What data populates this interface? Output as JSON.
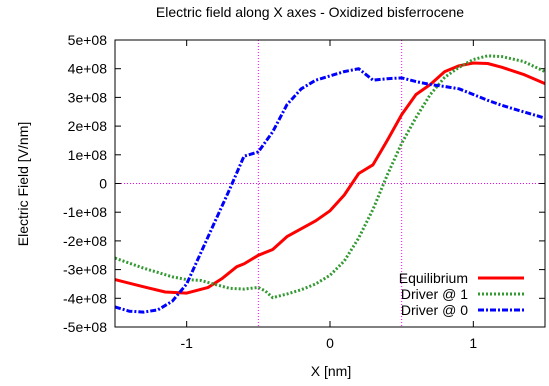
{
  "chart_data": {
    "type": "line",
    "title": "Electric field along X axes - Oxidized bisferrocene",
    "xlabel": "X [nm]",
    "ylabel": "Electric Field [V/nm]",
    "xlim": [
      -1.5,
      1.5
    ],
    "ylim": [
      -500000000,
      500000000
    ],
    "x_ticks": [
      -1,
      0,
      1
    ],
    "x_tick_labels": [
      "-1",
      "0",
      "1"
    ],
    "y_ticks": [
      -500000000,
      -400000000,
      -300000000,
      -200000000,
      -100000000,
      0,
      100000000,
      200000000,
      300000000,
      400000000,
      500000000
    ],
    "y_tick_labels": [
      "-5e+08",
      "-4e+08",
      "-3e+08",
      "-2e+08",
      "-1e+08",
      "0",
      "1e+08",
      "2e+08",
      "3e+08",
      "4e+08",
      "5e+08"
    ],
    "grid": false,
    "legend_position": "bottom-right",
    "reference_lines": {
      "vertical_x": [
        -0.5,
        0.5
      ],
      "horizontal_y": [
        0
      ],
      "color": "#ff00ff",
      "style": "dotted"
    },
    "series": [
      {
        "name": "Equilibrium",
        "color": "#ff0000",
        "style": "solid",
        "x": [
          -1.5,
          -1.3,
          -1.15,
          -1.0,
          -0.85,
          -0.75,
          -0.65,
          -0.6,
          -0.5,
          -0.4,
          -0.3,
          -0.1,
          0.0,
          0.1,
          0.2,
          0.3,
          0.4,
          0.5,
          0.6,
          0.7,
          0.8,
          0.9,
          1.0,
          1.1,
          1.2,
          1.35,
          1.5
        ],
        "y": [
          -335000000,
          -360000000,
          -378000000,
          -382000000,
          -362000000,
          -330000000,
          -290000000,
          -280000000,
          -250000000,
          -230000000,
          -185000000,
          -130000000,
          -95000000,
          -40000000,
          35000000,
          65000000,
          150000000,
          240000000,
          310000000,
          345000000,
          390000000,
          410000000,
          420000000,
          418000000,
          405000000,
          380000000,
          348000000
        ]
      },
      {
        "name": "Driver @ 1",
        "color": "#339933",
        "style": "dotted",
        "x": [
          -1.5,
          -1.3,
          -1.1,
          -1.0,
          -0.9,
          -0.8,
          -0.7,
          -0.6,
          -0.5,
          -0.45,
          -0.4,
          -0.3,
          -0.2,
          -0.1,
          0.0,
          0.1,
          0.2,
          0.3,
          0.4,
          0.5,
          0.6,
          0.7,
          0.8,
          0.9,
          1.0,
          1.1,
          1.2,
          1.35,
          1.5
        ],
        "y": [
          -260000000,
          -295000000,
          -325000000,
          -335000000,
          -338000000,
          -352000000,
          -365000000,
          -368000000,
          -362000000,
          -375000000,
          -398000000,
          -385000000,
          -370000000,
          -350000000,
          -320000000,
          -270000000,
          -190000000,
          -90000000,
          30000000,
          140000000,
          230000000,
          310000000,
          370000000,
          405000000,
          432000000,
          445000000,
          442000000,
          425000000,
          390000000
        ]
      },
      {
        "name": "Driver @ 0",
        "color": "#0000ff",
        "style": "dash-dot",
        "x": [
          -1.5,
          -1.4,
          -1.3,
          -1.2,
          -1.1,
          -1.0,
          -0.9,
          -0.8,
          -0.7,
          -0.6,
          -0.5,
          -0.4,
          -0.3,
          -0.2,
          -0.1,
          0.0,
          0.1,
          0.2,
          0.3,
          0.4,
          0.5,
          0.6,
          0.7,
          0.8,
          0.9,
          1.0,
          1.1,
          1.2,
          1.35,
          1.5
        ],
        "y": [
          -430000000,
          -445000000,
          -448000000,
          -440000000,
          -410000000,
          -350000000,
          -240000000,
          -130000000,
          -20000000,
          95000000,
          110000000,
          180000000,
          275000000,
          330000000,
          360000000,
          375000000,
          390000000,
          400000000,
          360000000,
          365000000,
          368000000,
          355000000,
          345000000,
          338000000,
          330000000,
          310000000,
          290000000,
          272000000,
          250000000,
          228000000
        ]
      }
    ]
  }
}
